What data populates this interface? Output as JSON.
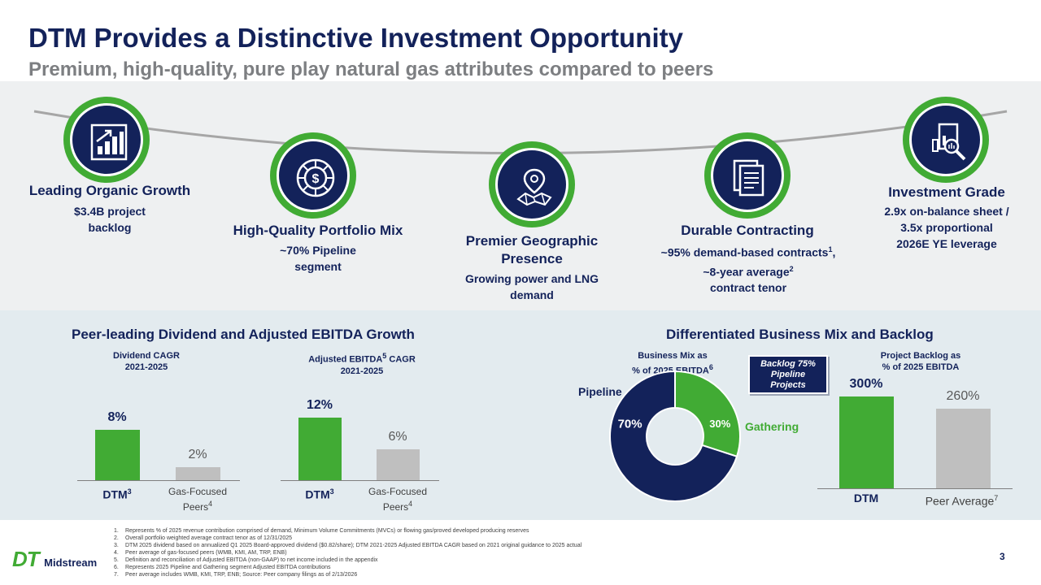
{
  "header": {
    "title": "DTM Provides a Distinctive Investment Opportunity",
    "subtitle": "Premium, high-quality, pure play natural gas attributes compared to peers"
  },
  "pillars": [
    {
      "title": "Leading Organic Growth",
      "lines": [
        "$3.4B project",
        "backlog"
      ],
      "icon": "bar-chart-growth-icon"
    },
    {
      "title": "High-Quality Portfolio Mix",
      "lines": [
        "~70% Pipeline",
        "segment"
      ],
      "icon": "dollar-pie-icon"
    },
    {
      "title_lines": [
        "Premier Geographic",
        "Presence"
      ],
      "lines": [
        "Growing power and LNG",
        "demand"
      ],
      "icon": "map-pin-icon"
    },
    {
      "title": "Durable Contracting",
      "line1": "~95% demand-based contracts",
      "line1_sup": "1",
      "line1_end": ",",
      "line2": "~8-year average",
      "line2_sup": "2",
      "line3": "contract tenor",
      "icon": "document-stack-icon"
    },
    {
      "title": "Investment Grade",
      "lines": [
        "2.9x on-balance sheet /",
        "3.5x proportional",
        "2026E YE leverage"
      ],
      "icon": "report-magnifier-icon"
    }
  ],
  "left_section": {
    "title": "Peer-leading Dividend and Adjusted EBITDA Growth"
  },
  "right_section": {
    "title": "Differentiated Business Mix and Backlog"
  },
  "chart_data": [
    {
      "type": "bar",
      "title_lines": [
        "Dividend CAGR",
        "2021-2025"
      ],
      "categories": [
        "DTM",
        "Gas-Focused Peers"
      ],
      "category_sup": [
        "3",
        "4"
      ],
      "values": [
        8,
        2
      ],
      "value_labels": [
        "8%",
        "2%"
      ],
      "ylim": [
        0,
        16
      ],
      "colors": [
        "#41ab34",
        "#bfbfbf"
      ]
    },
    {
      "type": "bar",
      "title_prefix": "Adjusted EBITDA",
      "title_sup": "5",
      "title_suffix": " CAGR",
      "title_line2": "2021-2025",
      "categories": [
        "DTM",
        "Gas-Focused Peers"
      ],
      "category_sup": [
        "3",
        "4"
      ],
      "values": [
        12,
        6
      ],
      "value_labels": [
        "12%",
        "6%"
      ],
      "ylim": [
        0,
        16
      ],
      "colors": [
        "#41ab34",
        "#bfbfbf"
      ]
    },
    {
      "type": "pie",
      "title_line1": "Business Mix as",
      "title_line2_prefix": "% of 2025 EBITDA",
      "title_sup": "6",
      "labels": [
        "Pipeline",
        "Gathering"
      ],
      "values": [
        70,
        30
      ],
      "value_labels": [
        "70%",
        "30%"
      ],
      "colors": [
        "#13225a",
        "#41ab34"
      ]
    },
    {
      "type": "bar",
      "title_lines": [
        "Project Backlog as",
        "% of 2025 EBITDA"
      ],
      "categories": [
        "DTM",
        "Peer Average"
      ],
      "category_sup": [
        "",
        "7"
      ],
      "values": [
        300,
        260
      ],
      "value_labels": [
        "300%",
        "260%"
      ],
      "ylim": [
        0,
        325
      ],
      "colors": [
        "#41ab34",
        "#bfbfbf"
      ],
      "annotation": [
        "Backlog 75%",
        "Pipeline",
        "Projects"
      ]
    }
  ],
  "footnotes": [
    "Represents % of 2025 revenue contribution comprised of demand, Minimum Volume Commitments (MVCs) or flowing gas/proved developed producing reserves",
    "Overall portfolio weighted average contract tenor as of 12/31/2025",
    "DTM 2025 dividend based on annualized Q1 2025 Board-approved dividend ($0.82/share); DTM 2021-2025 Adjusted EBITDA CAGR based on 2021 original guidance to 2025 actual",
    "Peer average of gas-focused peers (WMB, KMI, AM, TRP, ENB)",
    "Definition and reconciliation of Adjusted EBITDA (non-GAAP) to net income included in the appendix",
    "Represents 2025 Pipeline and Gathering segment Adjusted EBITDA contributions",
    "Peer average includes WMB, KMI, TRP, ENB; Source: Peer company filings as of 2/13/2026"
  ],
  "footer": {
    "logo_mark": "DT",
    "logo_text": "Midstream",
    "page": "3"
  }
}
